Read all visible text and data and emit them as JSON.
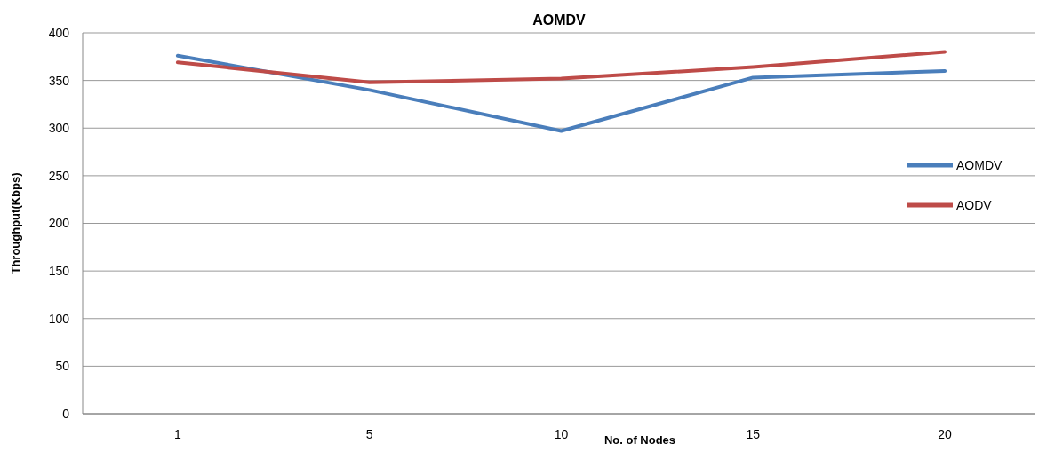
{
  "chart_data": {
    "type": "line",
    "title": "AOMDV",
    "xlabel": "No. of Nodes",
    "ylabel": "Throughput(Kbps)",
    "categories": [
      "1",
      "5",
      "10",
      "15",
      "20"
    ],
    "series": [
      {
        "name": "AOMDV",
        "color": "#4a7ebb",
        "values": [
          376,
          340,
          297,
          353,
          360
        ]
      },
      {
        "name": "AODV",
        "color": "#be4b48",
        "values": [
          369,
          348,
          352,
          364,
          380
        ]
      }
    ],
    "ylim": [
      0,
      400
    ],
    "yticks": [
      0,
      50,
      100,
      150,
      200,
      250,
      300,
      350,
      400
    ],
    "grid": "y",
    "legend": "right",
    "marker": "none",
    "line_style": "solid"
  }
}
